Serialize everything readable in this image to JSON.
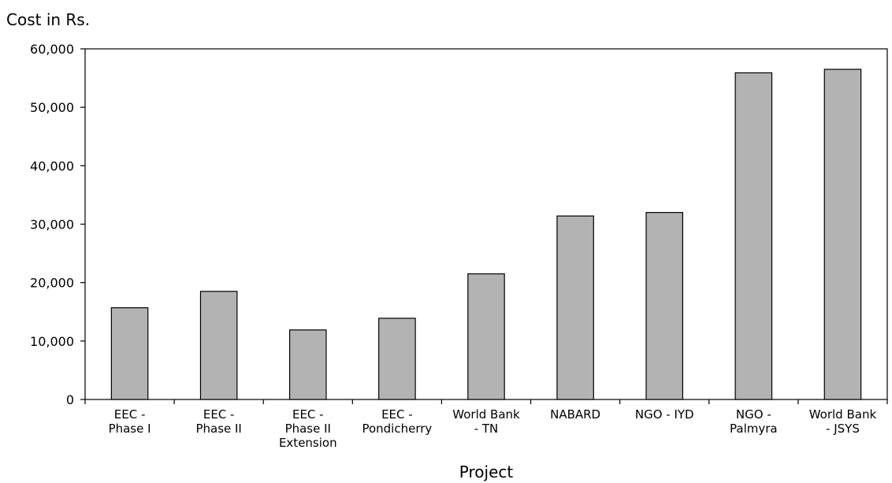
{
  "chart_data": {
    "type": "bar",
    "title": "",
    "ylabel": "Cost in Rs.",
    "xlabel": "Project",
    "ylim": [
      0,
      60000
    ],
    "yticks": [
      0,
      10000,
      20000,
      30000,
      40000,
      50000,
      60000
    ],
    "ytick_labels": [
      "0",
      "10,000",
      "20,000",
      "30,000",
      "40,000",
      "50,000",
      "60,000"
    ],
    "categories": [
      [
        "EEC -",
        "Phase I"
      ],
      [
        "EEC -",
        "Phase II"
      ],
      [
        "EEC -",
        "Phase II",
        "Extension"
      ],
      [
        "EEC -",
        "Pondicherry"
      ],
      [
        "World Bank",
        "- TN"
      ],
      [
        "NABARD"
      ],
      [
        "NGO - IYD"
      ],
      [
        "NGO -",
        "Palmyra"
      ],
      [
        "World Bank",
        "- JSYS"
      ]
    ],
    "values": [
      15700,
      18500,
      11900,
      13900,
      21500,
      31400,
      32000,
      55900,
      56500
    ],
    "bar_color": "#b3b3b3",
    "grid": false,
    "legend": "none"
  }
}
